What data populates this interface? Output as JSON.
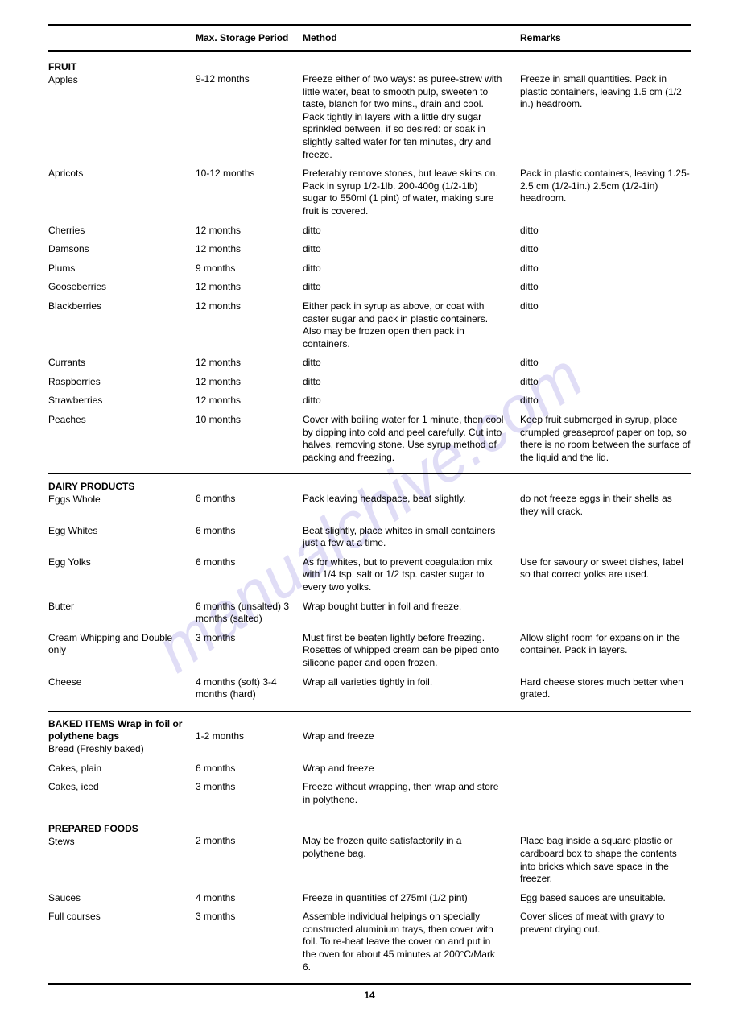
{
  "watermark": "manualchive.com",
  "headers": {
    "period": "Max. Storage Period",
    "method": "Method",
    "remarks": "Remarks"
  },
  "sections": [
    {
      "title": "FRUIT",
      "title_inline": "",
      "rows": [
        {
          "name": "Apples",
          "period": "9-12 months",
          "method": "Freeze either of two ways: as puree-strew with little water, beat to smooth pulp, sweeten to taste, blanch for two mins., drain and cool. Pack tightly in layers with a little dry sugar sprinkled between, if so desired: or soak in slightly salted water for ten minutes, dry and freeze.",
          "remarks": "Freeze in small quantities. Pack in plastic containers, leaving 1.5 cm (1/2 in.) headroom."
        },
        {
          "name": "Apricots",
          "period": "10-12 months",
          "method": "Preferably remove stones, but leave skins on. Pack in syrup 1/2-1lb. 200-400g (1/2-1lb) sugar to 550ml (1 pint) of water, making sure fruit is covered.",
          "remarks": "Pack in plastic containers, leaving 1.25-2.5 cm (1/2-1in.) 2.5cm (1/2-1in) headroom."
        },
        {
          "name": "Cherries",
          "period": "12 months",
          "method": "ditto",
          "remarks": "ditto"
        },
        {
          "name": "Damsons",
          "period": "12 months",
          "method": "ditto",
          "remarks": "ditto"
        },
        {
          "name": "Plums",
          "period": "9 months",
          "method": "ditto",
          "remarks": "ditto"
        },
        {
          "name": "Gooseberries",
          "period": "12 months",
          "method": "ditto",
          "remarks": "ditto"
        },
        {
          "name": "Blackberries",
          "period": "12 months",
          "method": "Either pack in syrup as above, or coat with caster sugar and pack in plastic containers. Also may be frozen open then pack in containers.",
          "remarks": "ditto"
        },
        {
          "name": "Currants",
          "period": "12 months",
          "method": "ditto",
          "remarks": "ditto"
        },
        {
          "name": "Raspberries",
          "period": "12 months",
          "method": "ditto",
          "remarks": "ditto"
        },
        {
          "name": "Strawberries",
          "period": "12 months",
          "method": "ditto",
          "remarks": "ditto"
        },
        {
          "name": "Peaches",
          "period": "10 months",
          "method": "Cover with boiling water for 1 minute, then cool by dipping into cold and peel carefully. Cut into halves, removing stone. Use syrup method of packing and freezing.",
          "remarks": "Keep fruit submerged in syrup, place crumpled greaseproof paper on top, so there is no room between the surface of the liquid and the lid."
        }
      ]
    },
    {
      "title": "DAIRY PRODUCTS",
      "title_inline": "",
      "rows": [
        {
          "name": "Eggs Whole",
          "period": "6 months",
          "method": "Pack leaving headspace, beat slightly.",
          "remarks": "do not freeze eggs in their shells as they will crack."
        },
        {
          "name": "Egg Whites",
          "period": "6 months",
          "method": "Beat slightly, place whites in small containers just a few at a time.",
          "remarks": ""
        },
        {
          "name": "Egg Yolks",
          "period": "6 months",
          "method": "As for whites, but to prevent coagulation mix with 1/4 tsp. salt or 1/2 tsp. caster sugar to every two yolks.",
          "remarks": "Use for savoury or sweet dishes, label so that correct yolks are used."
        },
        {
          "name": "Butter",
          "period": "6 months (unsalted) 3 months (salted)",
          "method": "Wrap bought butter in foil and freeze.",
          "remarks": ""
        },
        {
          "name": "Cream Whipping and Double only",
          "period": "3 months",
          "method": "Must first be beaten lightly before freezing. Rosettes of whipped cream can be piped onto silicone paper and open frozen.",
          "remarks": "Allow slight room for expansion in the container. Pack in layers."
        },
        {
          "name": "Cheese",
          "period": "4 months (soft) 3-4 months (hard)",
          "method": "Wrap all varieties tightly in foil.",
          "remarks": "Hard cheese stores much better when grated."
        }
      ]
    },
    {
      "title": "BAKED ITEMS",
      "title_inline": " Wrap in foil or polythene bags",
      "rows": [
        {
          "name": "Bread (Freshly baked)",
          "period": "1-2 months",
          "method": "Wrap and freeze",
          "remarks": ""
        },
        {
          "name": "Cakes, plain",
          "period": "6 months",
          "method": "Wrap and freeze",
          "remarks": ""
        },
        {
          "name": "Cakes, iced",
          "period": "3 months",
          "method": "Freeze without wrapping, then wrap and store in polythene.",
          "remarks": ""
        }
      ]
    },
    {
      "title": "PREPARED FOODS",
      "title_inline": "",
      "rows": [
        {
          "name": "Stews",
          "period": "2 months",
          "method": "May be frozen quite satisfactorily in a polythene bag.",
          "remarks": "Place bag inside a square plastic or cardboard box to shape the contents into bricks which save space in the freezer."
        },
        {
          "name": "Sauces",
          "period": "4 months",
          "method": "Freeze in quantities of 275ml (1/2 pint)",
          "remarks": "Egg based sauces are unsuitable."
        },
        {
          "name": "Full courses",
          "period": "3 months",
          "method": "Assemble individual helpings on specially constructed aluminium trays, then cover with foil. To re-heat leave the cover on and put in the oven for about 45 minutes at 200°C/Mark 6.",
          "remarks": "Cover slices of meat with gravy to prevent drying out."
        }
      ]
    }
  ],
  "page_number": "14"
}
